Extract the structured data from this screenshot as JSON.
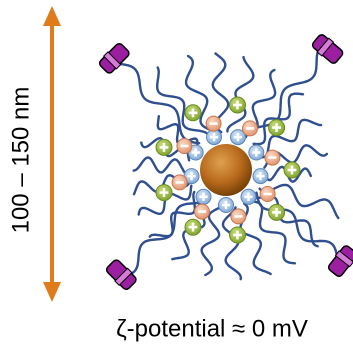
{
  "scale_label": "100 – 150 nm",
  "caption": "ζ-potential ≈ 0 mV"
}
